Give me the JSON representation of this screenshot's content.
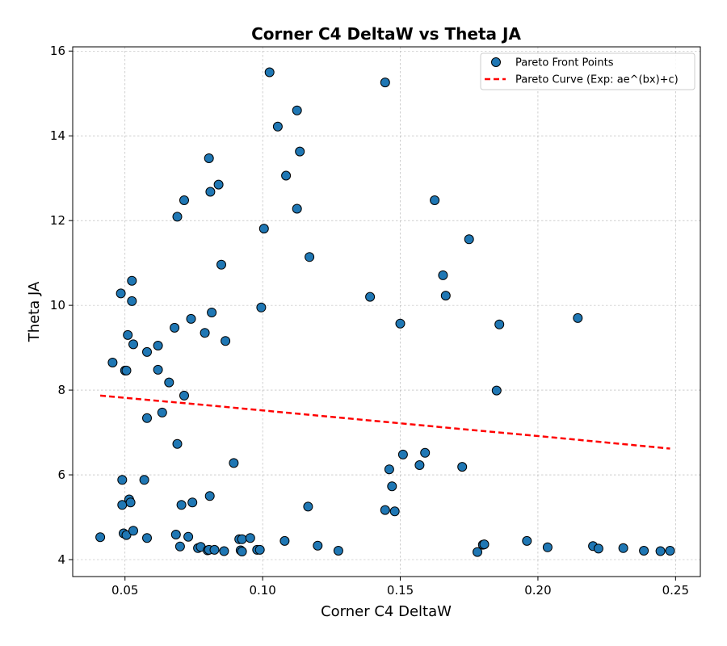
{
  "chart_data": {
    "type": "scatter",
    "title": "Corner C4 DeltaW vs Theta JA",
    "xlabel": "Corner C4 DeltaW",
    "ylabel": "Theta JA",
    "xlim": [
      0.031,
      0.259
    ],
    "ylim": [
      3.6,
      16.1
    ],
    "xticks": [
      0.05,
      0.1,
      0.15,
      0.2,
      0.25
    ],
    "xtick_labels": [
      "0.05",
      "0.10",
      "0.15",
      "0.20",
      "0.25"
    ],
    "yticks": [
      4,
      6,
      8,
      10,
      12,
      14,
      16
    ],
    "ytick_labels": [
      "4",
      "6",
      "8",
      "10",
      "12",
      "14",
      "16"
    ],
    "grid": true,
    "legend": {
      "position": "top-right",
      "entries": [
        "Pareto Front Points",
        "Pareto Curve (Exp: ae^(bx)+c)"
      ]
    },
    "colors": {
      "points": "#1f77b4",
      "curve": "#ff0000"
    },
    "series": [
      {
        "name": "Pareto Front Points",
        "kind": "scatter",
        "points": [
          [
            0.041,
            4.53
          ],
          [
            0.0455,
            8.65
          ],
          [
            0.0485,
            10.28
          ],
          [
            0.049,
            5.88
          ],
          [
            0.049,
            5.29
          ],
          [
            0.0495,
            4.62
          ],
          [
            0.05,
            8.46
          ],
          [
            0.0505,
            8.46
          ],
          [
            0.0505,
            4.58
          ],
          [
            0.051,
            9.3
          ],
          [
            0.0515,
            5.42
          ],
          [
            0.052,
            5.35
          ],
          [
            0.0525,
            10.58
          ],
          [
            0.0525,
            10.1
          ],
          [
            0.053,
            9.08
          ],
          [
            0.053,
            4.68
          ],
          [
            0.057,
            5.88
          ],
          [
            0.058,
            8.9
          ],
          [
            0.058,
            7.34
          ],
          [
            0.058,
            4.51
          ],
          [
            0.062,
            9.05
          ],
          [
            0.062,
            8.48
          ],
          [
            0.0635,
            7.47
          ],
          [
            0.066,
            8.18
          ],
          [
            0.068,
            9.47
          ],
          [
            0.0685,
            4.59
          ],
          [
            0.069,
            12.09
          ],
          [
            0.069,
            6.73
          ],
          [
            0.07,
            4.31
          ],
          [
            0.0705,
            5.29
          ],
          [
            0.0715,
            12.48
          ],
          [
            0.0715,
            7.87
          ],
          [
            0.073,
            4.54
          ],
          [
            0.074,
            9.68
          ],
          [
            0.0745,
            5.35
          ],
          [
            0.0765,
            4.27
          ],
          [
            0.0775,
            4.3
          ],
          [
            0.079,
            9.35
          ],
          [
            0.08,
            4.22
          ],
          [
            0.0805,
            13.47
          ],
          [
            0.0805,
            4.23
          ],
          [
            0.0808,
            5.5
          ],
          [
            0.081,
            12.68
          ],
          [
            0.0815,
            9.83
          ],
          [
            0.0825,
            4.23
          ],
          [
            0.084,
            12.85
          ],
          [
            0.085,
            10.96
          ],
          [
            0.086,
            4.2
          ],
          [
            0.0865,
            9.16
          ],
          [
            0.0895,
            6.28
          ],
          [
            0.0915,
            4.48
          ],
          [
            0.092,
            4.22
          ],
          [
            0.0925,
            4.48
          ],
          [
            0.0925,
            4.19
          ],
          [
            0.0955,
            4.51
          ],
          [
            0.098,
            4.23
          ],
          [
            0.099,
            4.23
          ],
          [
            0.0995,
            9.95
          ],
          [
            0.1005,
            11.81
          ],
          [
            0.1025,
            15.5
          ],
          [
            0.1055,
            14.22
          ],
          [
            0.108,
            4.44
          ],
          [
            0.1085,
            13.06
          ],
          [
            0.1125,
            14.6
          ],
          [
            0.1125,
            12.28
          ],
          [
            0.1135,
            13.63
          ],
          [
            0.1165,
            5.25
          ],
          [
            0.117,
            11.14
          ],
          [
            0.12,
            4.33
          ],
          [
            0.1275,
            4.21
          ],
          [
            0.139,
            10.2
          ],
          [
            0.1445,
            5.17
          ],
          [
            0.1445,
            15.26
          ],
          [
            0.146,
            6.13
          ],
          [
            0.147,
            5.73
          ],
          [
            0.148,
            5.14
          ],
          [
            0.15,
            9.57
          ],
          [
            0.151,
            6.48
          ],
          [
            0.157,
            6.23
          ],
          [
            0.159,
            6.52
          ],
          [
            0.1625,
            12.48
          ],
          [
            0.1655,
            10.71
          ],
          [
            0.1665,
            10.23
          ],
          [
            0.1725,
            6.19
          ],
          [
            0.175,
            11.56
          ],
          [
            0.178,
            4.18
          ],
          [
            0.18,
            4.35
          ],
          [
            0.1805,
            4.36
          ],
          [
            0.185,
            7.99
          ],
          [
            0.186,
            9.55
          ],
          [
            0.196,
            4.44
          ],
          [
            0.2035,
            4.29
          ],
          [
            0.2145,
            9.7
          ],
          [
            0.22,
            4.32
          ],
          [
            0.222,
            4.26
          ],
          [
            0.231,
            4.27
          ],
          [
            0.2385,
            4.21
          ],
          [
            0.2445,
            4.2
          ],
          [
            0.248,
            4.21
          ]
        ]
      },
      {
        "name": "Pareto Curve (Exp: ae^(bx)+c)",
        "kind": "line",
        "style": "dashed",
        "points": [
          [
            0.041,
            7.87
          ],
          [
            0.082,
            7.63
          ],
          [
            0.123,
            7.38
          ],
          [
            0.164,
            7.13
          ],
          [
            0.206,
            6.88
          ],
          [
            0.248,
            6.62
          ]
        ]
      }
    ]
  }
}
